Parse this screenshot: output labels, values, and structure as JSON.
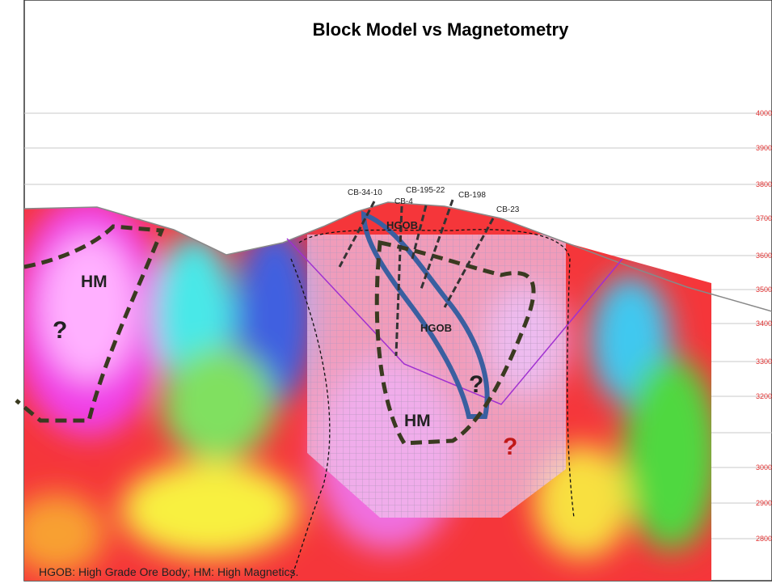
{
  "title": "Block Model  vs  Magnetometry",
  "elevation_labels": [
    "4000",
    "3900",
    "3800",
    "3700",
    "3600",
    "3500",
    "3400",
    "3300",
    "3200",
    "3000",
    "2900",
    "2800"
  ],
  "drill_holes": [
    "CB-34-10",
    "CB-4",
    "CB-195-22",
    "CB-198",
    "CB-23"
  ],
  "annotations": {
    "hgob": [
      "HGOB",
      "HGOB"
    ],
    "hm": [
      "HM",
      "HM"
    ],
    "question_marks": [
      "?",
      "?",
      "?"
    ]
  },
  "footer": "HGOB: High Grade Ore Body;    HM: High Magnetics."
}
